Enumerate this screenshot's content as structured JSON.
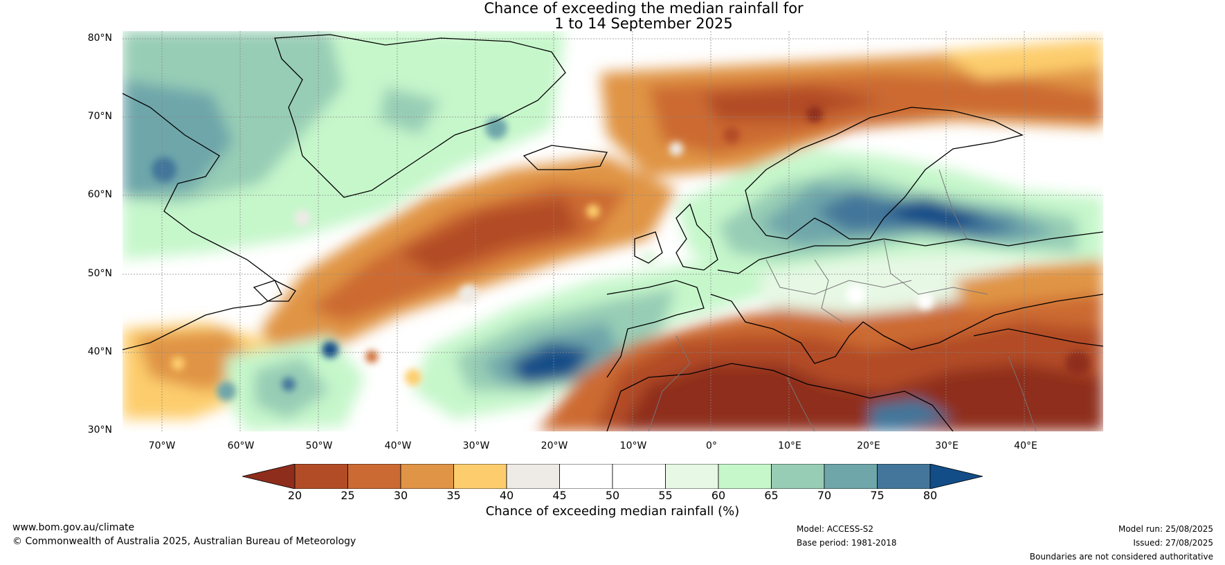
{
  "title": {
    "line1": "Chance of exceeding the median rainfall for",
    "line2": "1 to 14 September 2025"
  },
  "map": {
    "lat_labels": [
      "80°N",
      "70°N",
      "60°N",
      "50°N",
      "40°N",
      "30°N"
    ],
    "lon_labels": [
      "70°W",
      "60°W",
      "50°W",
      "40°W",
      "30°W",
      "20°W",
      "10°W",
      "0°",
      "10°E",
      "20°E",
      "30°E",
      "40°E"
    ],
    "lat_range": [
      30,
      81
    ],
    "lon_range": [
      -75,
      50
    ]
  },
  "colorbar": {
    "ticks": [
      "20",
      "25",
      "30",
      "35",
      "40",
      "45",
      "50",
      "55",
      "60",
      "65",
      "70",
      "75",
      "80"
    ],
    "colors": [
      "#8f2d1c",
      "#b24c26",
      "#cc6a33",
      "#e09445",
      "#fdcd6d",
      "#eeebe6",
      "#ffffff",
      "#ffffff",
      "#e7f8e5",
      "#c6f7cb",
      "#97cdb5",
      "#6ea6aa",
      "#43769a",
      "#124d88"
    ],
    "title": "Chance of exceeding median rainfall (%)"
  },
  "footer": {
    "website": "www.bom.gov.au/climate",
    "copyright": "© Commonwealth of Australia 2025, Australian Bureau of Meteorology",
    "model": "Model: ACCESS-S2",
    "base_period": "Base period: 1981-2018",
    "model_run": "Model run: 25/08/2025",
    "issued": "Issued: 27/08/2025",
    "disclaimer": "Boundaries are not considered authoritative"
  }
}
